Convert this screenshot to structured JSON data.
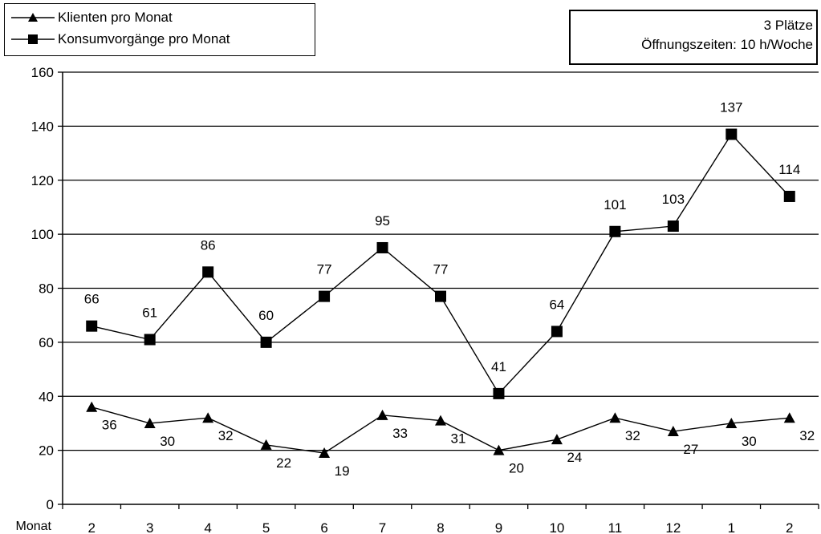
{
  "chart_data": {
    "type": "line",
    "categories": [
      "2",
      "3",
      "4",
      "5",
      "6",
      "7",
      "8",
      "9",
      "10",
      "11",
      "12",
      "1",
      "2"
    ],
    "series": [
      {
        "name": "Klienten pro Monat",
        "marker": "triangle",
        "values": [
          36,
          30,
          32,
          22,
          19,
          33,
          31,
          20,
          24,
          32,
          27,
          30,
          32
        ]
      },
      {
        "name": "Konsumvorgänge pro Monat",
        "marker": "square",
        "values": [
          66,
          61,
          86,
          60,
          77,
          95,
          77,
          41,
          64,
          101,
          103,
          137,
          114
        ]
      }
    ],
    "xlabel": "Monat",
    "ylabel": "",
    "ylim": [
      0,
      160
    ],
    "yticks": [
      0,
      20,
      40,
      60,
      80,
      100,
      120,
      140,
      160
    ],
    "grid": true,
    "legend": "top-left",
    "colors": {
      "line": "#000000",
      "grid": "#000000",
      "background": "#ffffff"
    }
  },
  "info_box": {
    "line1": "3 Plätze",
    "line2": "Öffnungszeiten: 10 h/Woche"
  }
}
